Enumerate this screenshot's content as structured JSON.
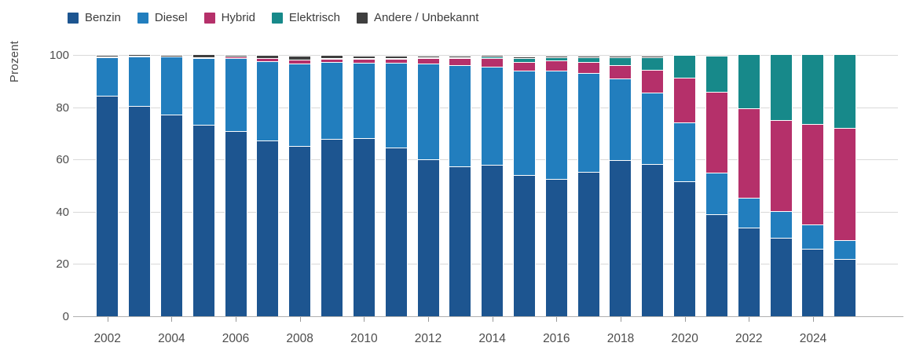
{
  "chart_data": {
    "type": "bar",
    "stacked": true,
    "title": "",
    "ylabel": "Prozent",
    "ylim": [
      0,
      100
    ],
    "yticks": [
      0,
      20,
      40,
      60,
      80,
      100
    ],
    "grid": true,
    "legend_position": "top-left",
    "categories": [
      2002,
      2003,
      2004,
      2005,
      2006,
      2007,
      2008,
      2009,
      2010,
      2011,
      2012,
      2013,
      2014,
      2015,
      2016,
      2017,
      2018,
      2019,
      2020,
      2021,
      2022,
      2023,
      2024,
      2025
    ],
    "xtick_labels": [
      "2002",
      "2004",
      "2006",
      "2008",
      "2010",
      "2012",
      "2014",
      "2016",
      "2018",
      "2020",
      "2022",
      "2024"
    ],
    "series": [
      {
        "name": "Benzin",
        "color": "#1d5590",
        "values": [
          84.4,
          80.4,
          77.3,
          73.3,
          71.0,
          67.2,
          65.2,
          68.0,
          68.3,
          64.5,
          60.0,
          57.5,
          58.0,
          54.2,
          52.7,
          55.2,
          59.8,
          58.4,
          51.6,
          39.0,
          33.9,
          30.0,
          25.9,
          21.8
        ]
      },
      {
        "name": "Diesel",
        "color": "#227ebe",
        "values": [
          15.0,
          19.3,
          22.2,
          25.7,
          27.7,
          30.4,
          31.6,
          29.2,
          28.7,
          32.4,
          36.8,
          38.6,
          37.6,
          39.7,
          41.4,
          38.0,
          31.1,
          27.3,
          22.6,
          16.0,
          11.3,
          10.3,
          9.1,
          7.3
        ]
      },
      {
        "name": "Hybrid",
        "color": "#b5306a",
        "values": [
          0.1,
          0.1,
          0.1,
          0.2,
          0.8,
          1.2,
          1.4,
          1.6,
          1.7,
          1.8,
          1.9,
          2.8,
          3.1,
          3.5,
          3.7,
          4.1,
          5.3,
          8.7,
          17.0,
          31.0,
          34.3,
          34.7,
          38.7,
          42.9
        ]
      },
      {
        "name": "Elektrisch",
        "color": "#17898a",
        "values": [
          0.0,
          0.0,
          0.0,
          0.0,
          0.0,
          0.0,
          0.0,
          0.1,
          0.1,
          0.2,
          0.3,
          0.4,
          0.8,
          1.5,
          1.4,
          2.0,
          3.2,
          4.9,
          8.4,
          13.5,
          20.5,
          25.0,
          26.3,
          28.0
        ]
      },
      {
        "name": "Andere / Unbekannt",
        "color": "#3f3f3f",
        "values": [
          0.2,
          0.1,
          0.2,
          0.7,
          0.2,
          1.0,
          1.2,
          0.7,
          0.6,
          0.4,
          0.4,
          0.2,
          0.1,
          0.2,
          0.2,
          0.1,
          0.1,
          0.2,
          0.0,
          0.0,
          0.0,
          0.0,
          0.0,
          0.0
        ]
      }
    ],
    "grid_color": "#d9d9d9",
    "axis_line_color": "#b0b0b0",
    "tick_text_color": "#4d4d4d"
  }
}
